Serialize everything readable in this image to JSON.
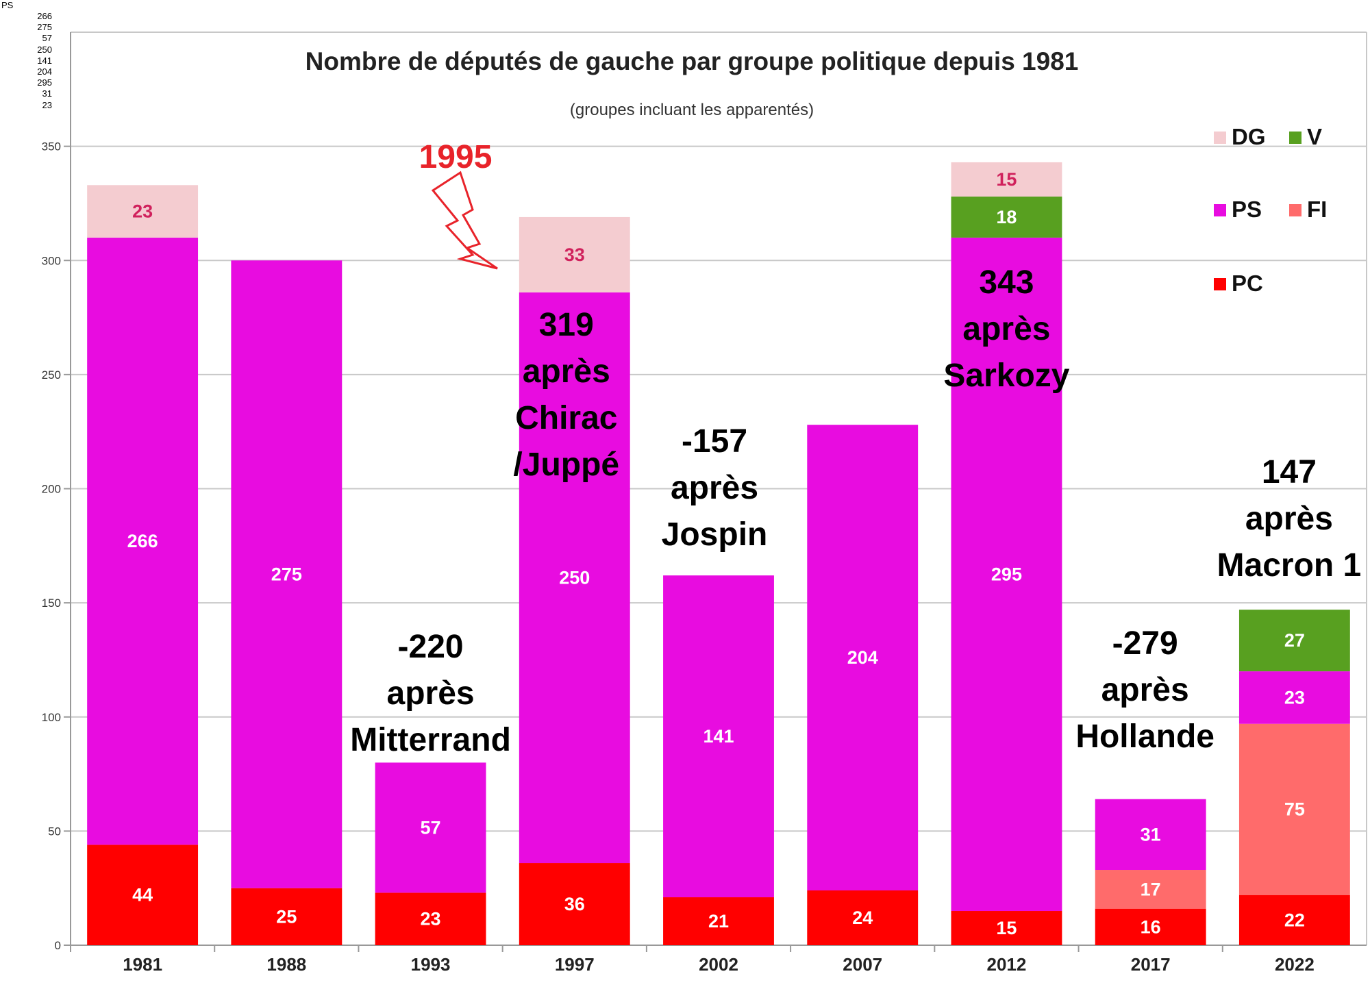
{
  "corner": {
    "series_label": "PS",
    "values": [
      "266",
      "275",
      "57",
      "250",
      "141",
      "204",
      "295",
      "31",
      "23"
    ]
  },
  "chart_data": {
    "type": "bar",
    "stacked": true,
    "title": "Nombre de députés de gauche par groupe politique depuis 1981",
    "subtitle": "(groupes incluant les apparentés)",
    "xlabel": "",
    "ylabel": "",
    "ylim": [
      0,
      400
    ],
    "yticks": [
      0,
      50,
      100,
      150,
      200,
      250,
      300,
      350
    ],
    "ytick_labels": [
      "0",
      "50",
      "100",
      "150",
      "200",
      "250",
      "300",
      "350"
    ],
    "grid": true,
    "legend_position": "top-right",
    "categories": [
      "1981",
      "1988",
      "1993",
      "1997",
      "2002",
      "2007",
      "2012",
      "2017",
      "2022"
    ],
    "series": [
      {
        "name": "PC",
        "color": "#ff0000",
        "values": [
          44,
          25,
          23,
          36,
          21,
          24,
          15,
          16,
          22
        ]
      },
      {
        "name": "FI",
        "color": "#ff6b6b",
        "values": [
          0,
          0,
          0,
          0,
          0,
          0,
          0,
          17,
          75
        ]
      },
      {
        "name": "PS",
        "color": "#e80ce0",
        "values": [
          266,
          275,
          57,
          250,
          141,
          204,
          295,
          31,
          23
        ]
      },
      {
        "name": "V",
        "color": "#58a020",
        "values": [
          0,
          0,
          0,
          0,
          0,
          0,
          18,
          0,
          27
        ]
      },
      {
        "name": "DG",
        "color": "#f4ccd0",
        "values": [
          23,
          0,
          0,
          33,
          0,
          0,
          15,
          0,
          0
        ]
      }
    ],
    "legend": [
      {
        "name": "DG",
        "color": "#f4ccd0"
      },
      {
        "name": "V",
        "color": "#58a020"
      },
      {
        "name": "PS",
        "color": "#e80ce0"
      },
      {
        "name": "FI",
        "color": "#ff6b6b"
      },
      {
        "name": "PC",
        "color": "#ff0000"
      }
    ],
    "annotations": [
      {
        "category": "1993",
        "lines": [
          "-220",
          "après",
          "Mitterrand"
        ]
      },
      {
        "category": "1997",
        "lines": [
          "319",
          "après",
          "Chirac",
          "/Juppé"
        ]
      },
      {
        "category": "2002",
        "lines": [
          "-157",
          "après",
          "Jospin"
        ]
      },
      {
        "category": "2012",
        "lines": [
          "343",
          "après",
          "Sarkozy"
        ]
      },
      {
        "category": "2017",
        "lines": [
          "-279",
          "après",
          "Hollande"
        ]
      },
      {
        "category": "2022",
        "lines": [
          "147",
          "après",
          "Macron 1"
        ]
      }
    ],
    "event_marker": {
      "label": "1995",
      "color": "#e8232a"
    }
  }
}
